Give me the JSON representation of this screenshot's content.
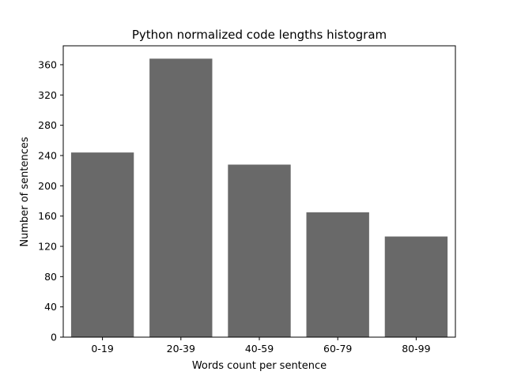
{
  "chart_data": {
    "type": "bar",
    "title": "Python normalized code lengths histogram",
    "xlabel": "Words count per sentence",
    "ylabel": "Number of sentences",
    "categories": [
      "0-19",
      "20-39",
      "40-59",
      "60-79",
      "80-99"
    ],
    "values": [
      244,
      368,
      228,
      165,
      133
    ],
    "ylim": [
      0,
      385
    ],
    "yticks": [
      0,
      40,
      80,
      120,
      160,
      200,
      240,
      280,
      320,
      360
    ],
    "bar_color": "#696969",
    "grid": false,
    "legend": "none"
  }
}
